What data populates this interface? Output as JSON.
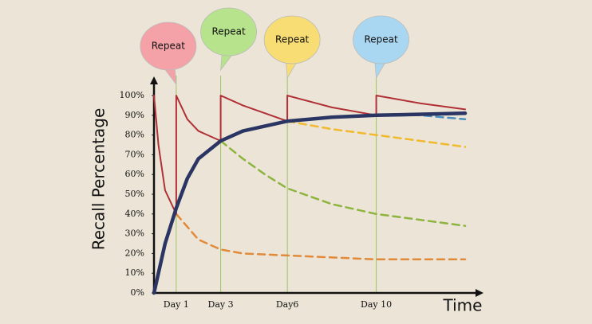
{
  "chart_data": {
    "type": "line",
    "y_label": "Recall Percentage",
    "x_label": "Time",
    "xlim": [
      0,
      14
    ],
    "ylim": [
      0,
      100
    ],
    "xticks": [
      {
        "value": 1,
        "label": "Day 1"
      },
      {
        "value": 3,
        "label": "Day 3"
      },
      {
        "value": 6,
        "label": "Day6"
      },
      {
        "value": 10,
        "label": "Day 10"
      }
    ],
    "yticks": [
      {
        "value": 0,
        "label": "0%"
      },
      {
        "value": 10,
        "label": "10%"
      },
      {
        "value": 20,
        "label": "20%"
      },
      {
        "value": 30,
        "label": "30%"
      },
      {
        "value": 40,
        "label": "40%"
      },
      {
        "value": 50,
        "label": "50%"
      },
      {
        "value": 60,
        "label": "60%"
      },
      {
        "value": 70,
        "label": "70%"
      },
      {
        "value": 80,
        "label": "80%"
      },
      {
        "value": 90,
        "label": "90%"
      },
      {
        "value": 100,
        "label": "100%"
      }
    ],
    "series": [
      {
        "color": "#e08a3a",
        "dashed": true,
        "x": [
          1,
          2,
          3,
          4,
          6,
          8,
          10,
          14
        ],
        "values": [
          40,
          27,
          22,
          20,
          19,
          18,
          17,
          17
        ]
      },
      {
        "color": "#8db43e",
        "dashed": true,
        "x": [
          3,
          4,
          5,
          6,
          8,
          10,
          14
        ],
        "values": [
          77,
          68,
          60,
          53,
          45,
          40,
          34
        ]
      },
      {
        "color": "#f0b92e",
        "dashed": true,
        "x": [
          6,
          8,
          10,
          12,
          14
        ],
        "values": [
          87,
          83,
          80,
          77,
          74
        ]
      },
      {
        "color": "#4a8fc0",
        "dashed": true,
        "x": [
          10,
          12,
          14
        ],
        "values": [
          90,
          90,
          88
        ]
      },
      {
        "color": "#b03036",
        "dashed": false,
        "x": [
          0,
          0.2,
          0.5,
          1,
          1,
          1.5,
          2,
          3,
          3,
          4,
          5,
          6,
          6,
          8,
          10,
          10,
          12,
          14
        ],
        "values": [
          100,
          75,
          52,
          40,
          100,
          88,
          82,
          77,
          100,
          95,
          91,
          87,
          100,
          94,
          90,
          100,
          96,
          93
        ]
      },
      {
        "color": "#2b3563",
        "dashed": false,
        "bold": true,
        "x": [
          0,
          0.5,
          1,
          1.5,
          2,
          3,
          4,
          6,
          8,
          10,
          14
        ],
        "values": [
          0,
          25,
          43,
          58,
          68,
          77,
          82,
          87,
          89,
          90,
          91
        ]
      }
    ],
    "annotations": [
      {
        "text": "Repeat",
        "color": "#f4a2a8"
      },
      {
        "text": "Repeat",
        "color": "#b6e38c"
      },
      {
        "text": "Repeat",
        "color": "#f8dc74"
      },
      {
        "text": "Repeat",
        "color": "#a9d6f0"
      }
    ],
    "marker_line_color": "#9cc563"
  }
}
